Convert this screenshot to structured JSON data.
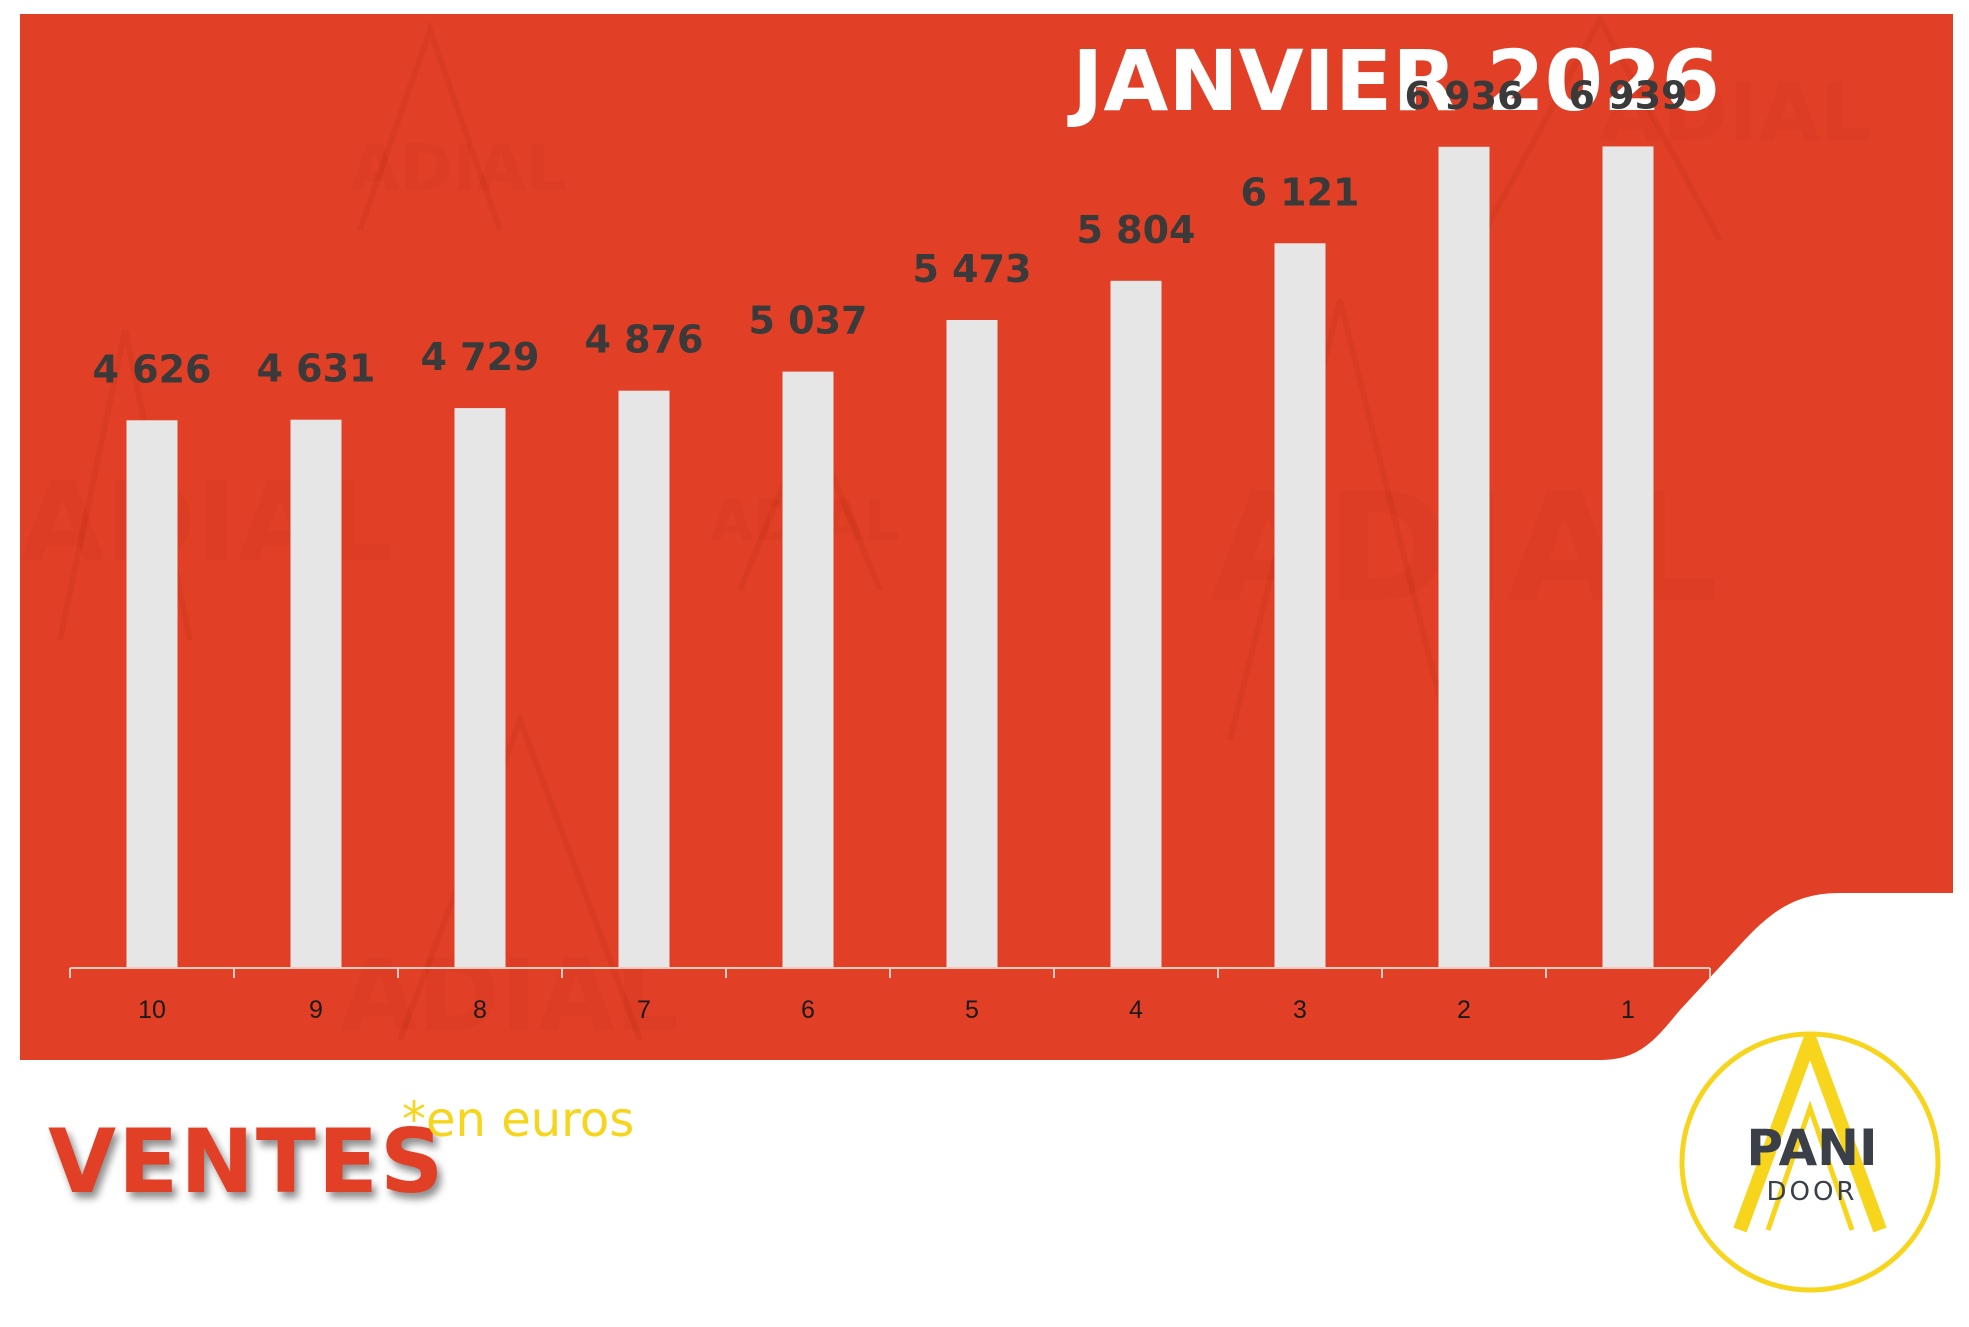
{
  "chart_data": {
    "type": "bar",
    "title": "JANVIER 2026",
    "categories": [
      "10",
      "9",
      "8",
      "7",
      "6",
      "5",
      "4",
      "3",
      "2",
      "1"
    ],
    "values": [
      4626,
      4631,
      4729,
      4876,
      5037,
      5473,
      5804,
      6121,
      6936,
      6939
    ],
    "value_labels": [
      "4 626",
      "4 631",
      "4 729",
      "4 876",
      "5 037",
      "5 473",
      "5 804",
      "6 121",
      "6 936",
      "6 939"
    ],
    "ylim": [
      0,
      7500
    ],
    "xlabel": "",
    "ylabel": "",
    "grid": false,
    "legend": "none"
  },
  "footer": {
    "label": "VENTES",
    "unit": "*en euros"
  },
  "logo": {
    "line1": "PANI",
    "line2": "DOOR"
  },
  "watermark": "ADIAL",
  "colors": {
    "panel": "#e24026",
    "bar": "#e6e6e6",
    "value_label": "#3a3a3a",
    "tick_label": "#1a1a1a",
    "title": "#ffffff",
    "ventes": "#e24026",
    "unit": "#f6d51c",
    "logo_ring": "#f6d51c",
    "logo_text": "#3a3f48"
  }
}
